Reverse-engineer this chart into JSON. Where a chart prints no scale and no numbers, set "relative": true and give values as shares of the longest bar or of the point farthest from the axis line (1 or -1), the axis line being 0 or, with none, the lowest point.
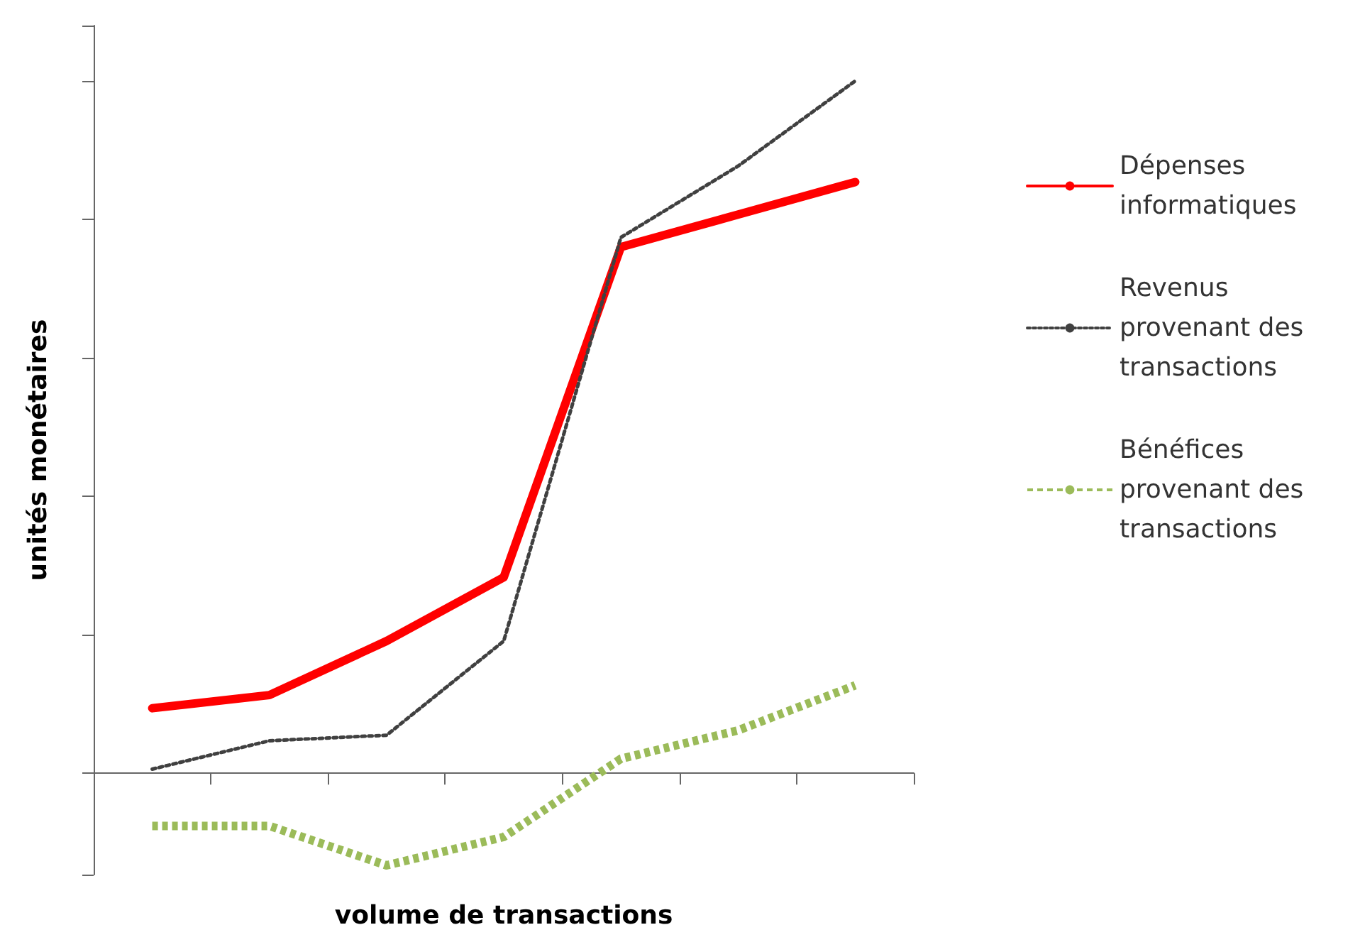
{
  "chart_data": {
    "type": "line",
    "relative": true,
    "xlabel": "volume de transactions",
    "ylabel": "unités monétaires",
    "categories": [
      null,
      null,
      null,
      null,
      null,
      null,
      null
    ],
    "grid": false,
    "legend": "right",
    "marker": "none",
    "series": [
      {
        "name": "Dépenses informatiques",
        "color": "#ff0000",
        "line_style": "solid",
        "values": [
          0.094,
          0.113,
          0.191,
          0.283,
          0.76,
          0.807,
          0.854
        ]
      },
      {
        "name": "Revenus provenant des transactions",
        "color": "#404040",
        "line_style": "dotted",
        "values": [
          0.006,
          0.047,
          0.055,
          0.191,
          0.774,
          0.877,
          1
        ]
      },
      {
        "name": "Bénéfices provenant des transactions",
        "color": "#9bbb59",
        "line_style": "dashed",
        "values": [
          -0.076,
          -0.076,
          -0.133,
          -0.092,
          0.021,
          0.062,
          0.127
        ]
      }
    ]
  }
}
